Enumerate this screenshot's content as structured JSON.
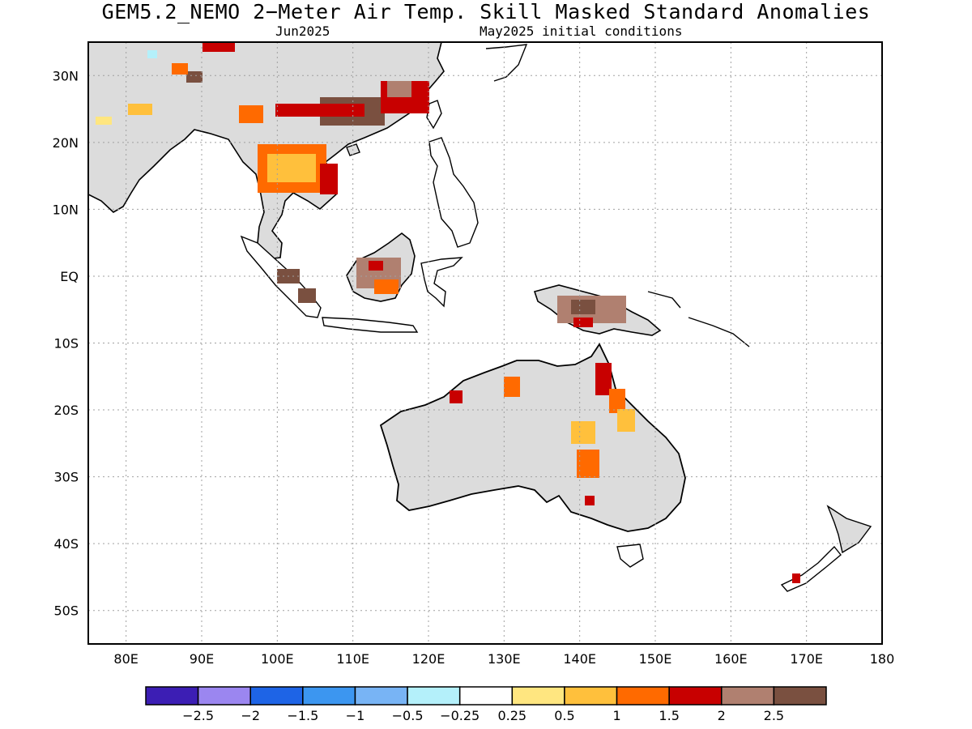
{
  "title": "GEM5.2_NEMO 2−Meter Air Temp. Skill Masked Standard Anomalies",
  "subtitle_left": "Jun2025",
  "subtitle_right": "May2025 initial conditions",
  "colors": {
    "land_masked": "#dcdcdc",
    "coast": "#000000",
    "grid": "#a0a0a0",
    "anom_025": "#ffe680",
    "anom_05": "#ffc03c",
    "anom_1": "#ff6a00",
    "anom_15": "#c80000",
    "anom_2": "#b08070",
    "anom_25": "#7a5040"
  },
  "map": {
    "lon_range": [
      75,
      180
    ],
    "lat_range": [
      -55,
      35
    ],
    "lon_ticks": [
      "80E",
      "90E",
      "100E",
      "110E",
      "120E",
      "130E",
      "140E",
      "150E",
      "160E",
      "170E",
      "180"
    ],
    "lat_ticks": [
      "30N",
      "20N",
      "10N",
      "EQ",
      "10S",
      "20S",
      "30S",
      "40S",
      "50S"
    ]
  },
  "colorbar": {
    "colors": [
      "#3c1eb4",
      "#9b86f0",
      "#1e64e6",
      "#3c96f0",
      "#78b4f5",
      "#b4f0fa",
      "#ffffff",
      "#ffe680",
      "#ffc03c",
      "#ff6a00",
      "#c80000",
      "#b08070",
      "#7a5040"
    ],
    "labels": [
      "−2.5",
      "−2",
      "−1.5",
      "−1",
      "−0.5",
      "−0.25",
      "0.25",
      "0.5",
      "1",
      "1.5",
      "2",
      "2.5"
    ]
  }
}
